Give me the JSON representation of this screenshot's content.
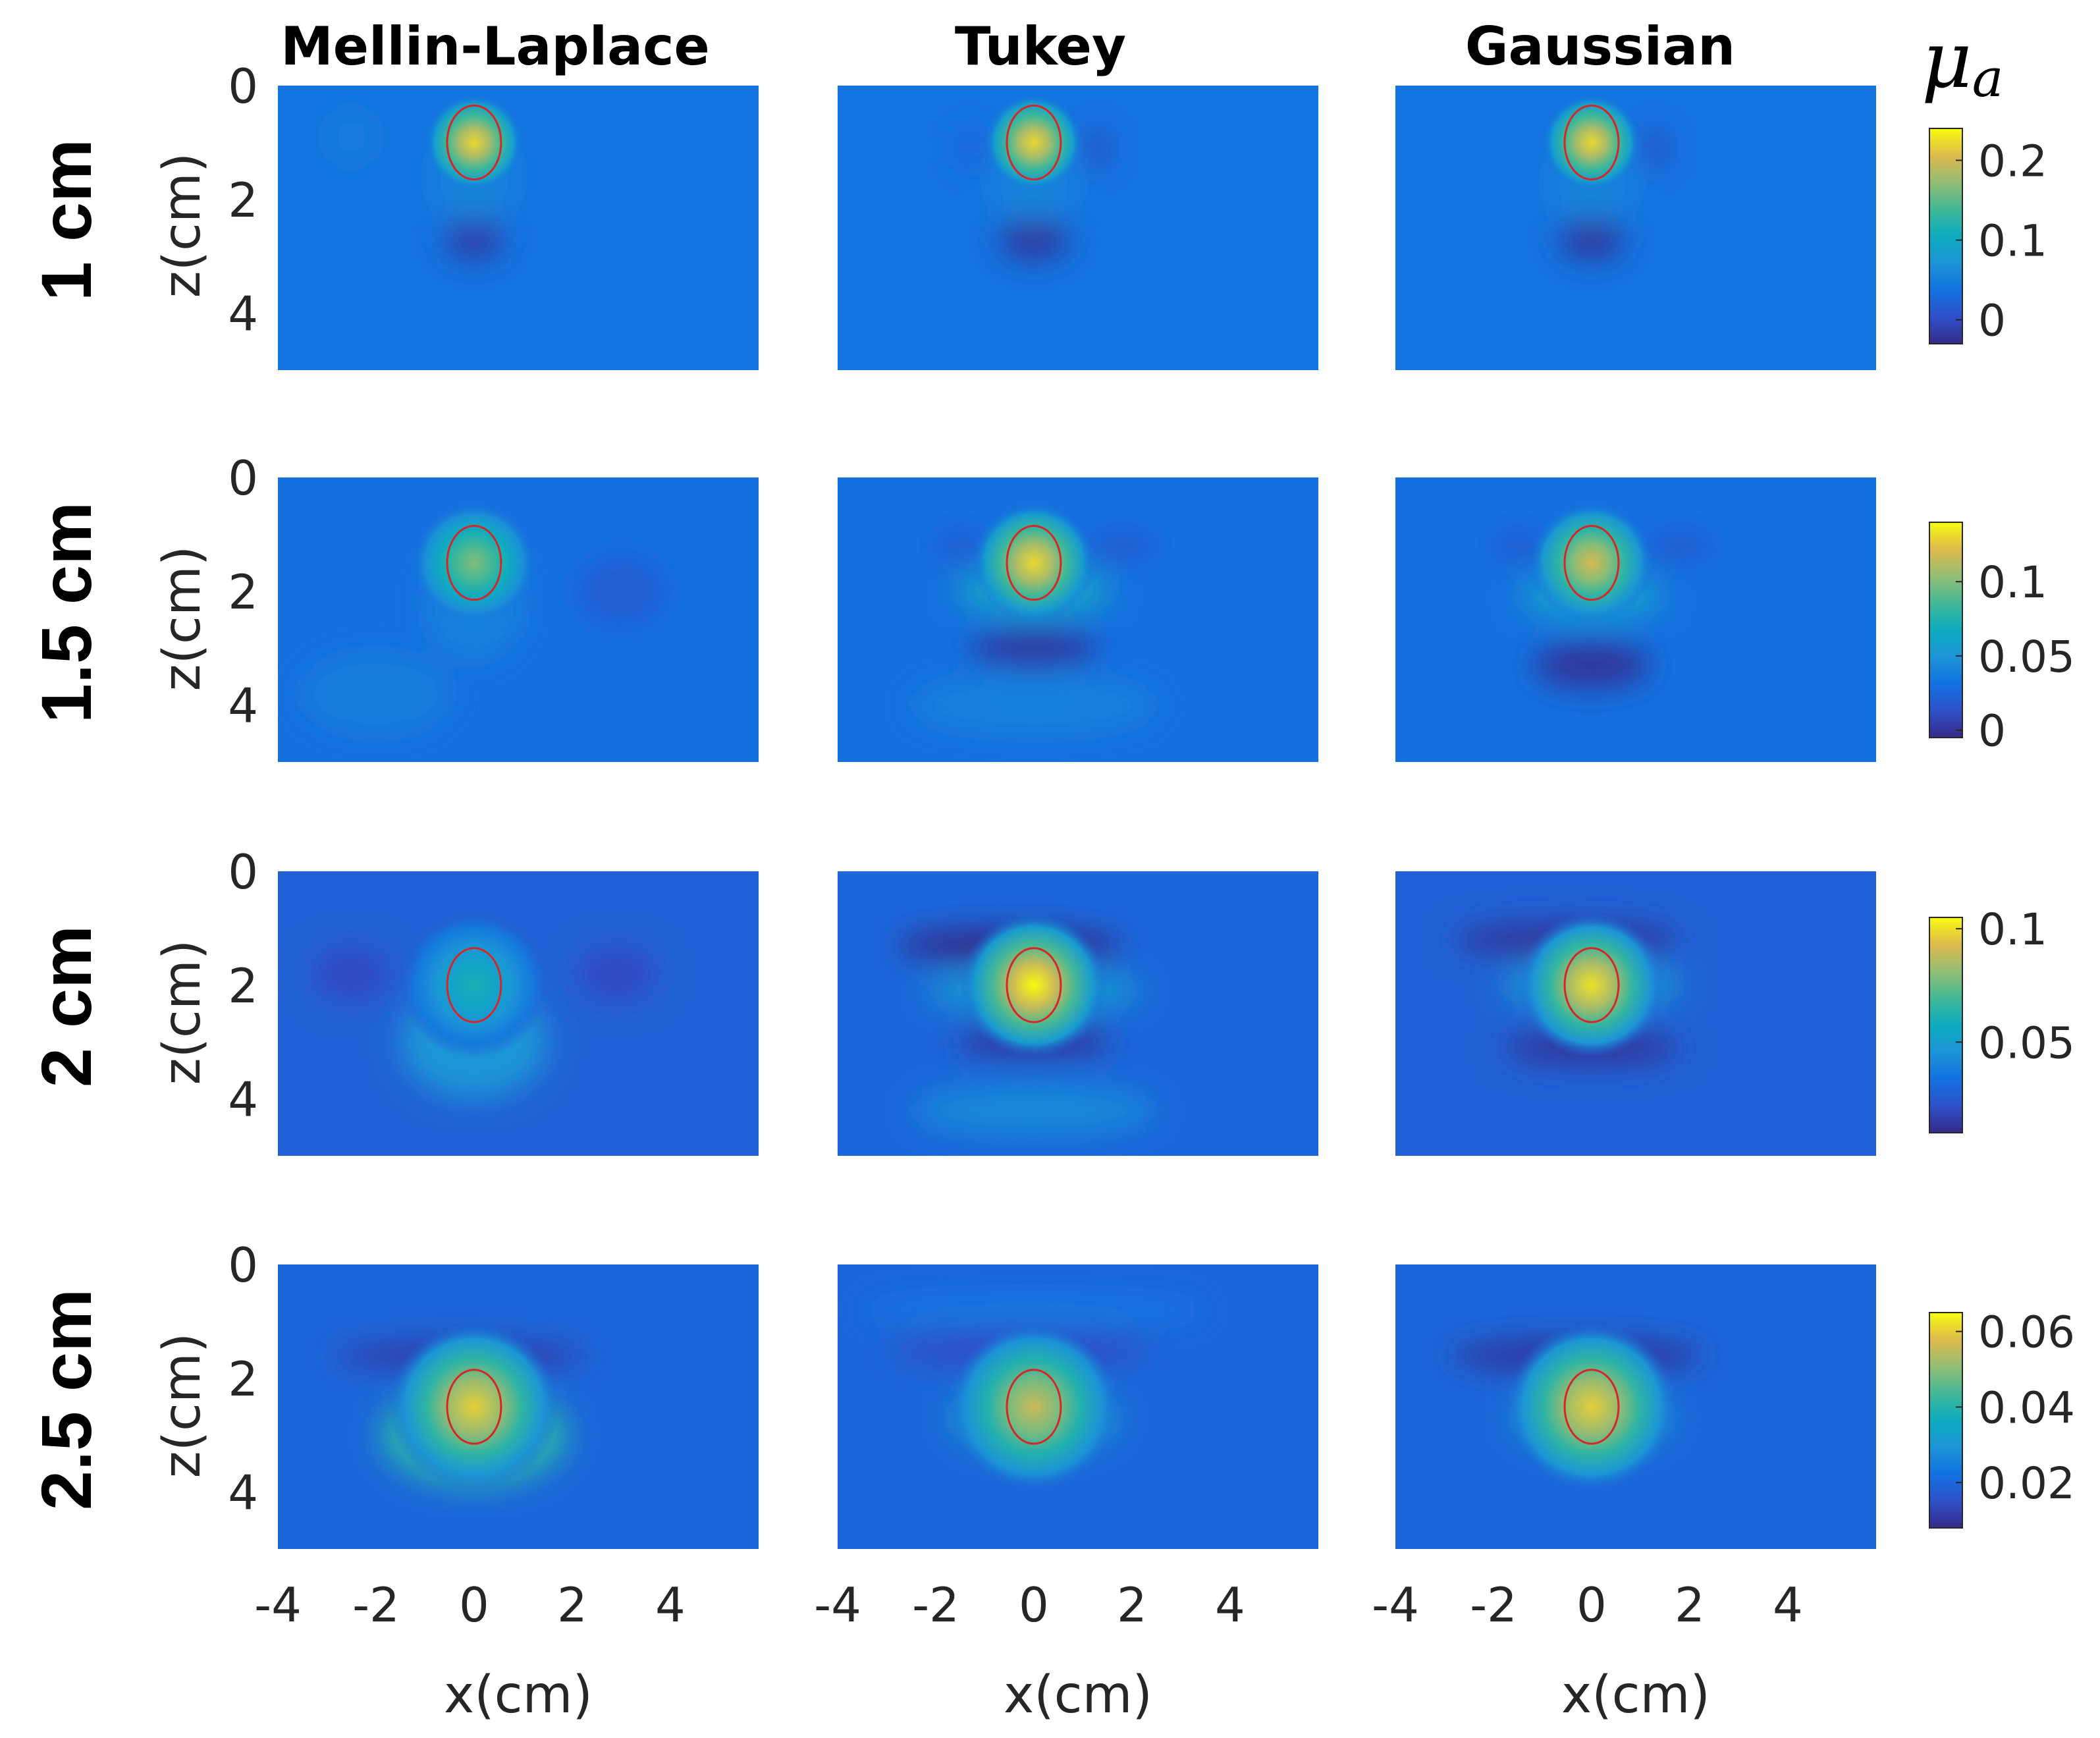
{
  "chart_data": {
    "type": "heatmap",
    "colormap": "parula",
    "columns": [
      "Mellin-Laplace",
      "Tukey",
      "Gaussian"
    ],
    "colorbar_label": {
      "symbol": "μ",
      "subscript": "a"
    },
    "xlabel": "x(cm)",
    "ylabel": "z(cm)",
    "x_ticks": [
      "-4",
      "-2",
      "0",
      "2",
      "4"
    ],
    "x_tick_values": [
      -4,
      -2,
      0,
      2,
      4
    ],
    "y_ticks": [
      "0",
      "2",
      "4"
    ],
    "y_tick_values": [
      0,
      2,
      4
    ],
    "xlim": [
      -4,
      5.8
    ],
    "ylim": [
      0,
      5
    ],
    "inclusion": {
      "x": 0,
      "radius_x": 0.55,
      "radius_z": 0.65,
      "outline_color": "#d62728"
    },
    "rows": [
      {
        "label": "1 cm",
        "depth": 1,
        "colorbar": {
          "min": -0.03,
          "max": 0.24,
          "ticks": [
            "0.2",
            "0.1",
            "0"
          ],
          "tick_values": [
            0.2,
            0.1,
            0
          ]
        },
        "panels": [
          {
            "method": "Mellin-Laplace",
            "background": 0.04,
            "peak": 0.22,
            "blobs": [
              {
                "x": 0,
                "z": 2.7,
                "sx": 0.6,
                "sz": 0.35,
                "v": -0.055
              },
              {
                "x": 0,
                "z": 1.6,
                "sx": 0.9,
                "sz": 0.8,
                "v": 0.015
              },
              {
                "x": -2.5,
                "z": 0.9,
                "sx": 0.5,
                "sz": 0.5,
                "v": 0.01
              }
            ]
          },
          {
            "method": "Tukey",
            "background": 0.04,
            "peak": 0.22,
            "blobs": [
              {
                "x": 0,
                "z": 2.7,
                "sx": 0.7,
                "sz": 0.35,
                "v": -0.06
              },
              {
                "x": 1.3,
                "z": 1.1,
                "sx": 0.25,
                "sz": 0.35,
                "v": -0.04
              },
              {
                "x": -1.3,
                "z": 1.1,
                "sx": 0.25,
                "sz": 0.35,
                "v": -0.02
              },
              {
                "x": 0,
                "z": 1.7,
                "sx": 0.9,
                "sz": 0.7,
                "v": 0.015
              }
            ]
          },
          {
            "method": "Gaussian",
            "background": 0.04,
            "peak": 0.22,
            "blobs": [
              {
                "x": 0,
                "z": 2.7,
                "sx": 0.65,
                "sz": 0.35,
                "v": -0.06
              },
              {
                "x": 1.3,
                "z": 1.1,
                "sx": 0.25,
                "sz": 0.35,
                "v": -0.04
              },
              {
                "x": 0,
                "z": 1.7,
                "sx": 0.9,
                "sz": 0.7,
                "v": 0.015
              }
            ]
          }
        ]
      },
      {
        "label": "1.5 cm",
        "depth": 1.5,
        "colorbar": {
          "min": -0.005,
          "max": 0.14,
          "ticks": [
            "0.1",
            "0.05",
            "0"
          ],
          "tick_values": [
            0.1,
            0.05,
            0
          ]
        },
        "panels": [
          {
            "method": "Mellin-Laplace",
            "background": 0.03,
            "peak": 0.1,
            "blobs": [
              {
                "x": 3,
                "z": 2.0,
                "sx": 0.9,
                "sz": 0.6,
                "v": -0.01
              },
              {
                "x": 0,
                "z": 2.2,
                "sx": 1.0,
                "sz": 1.0,
                "v": 0.01
              },
              {
                "x": -2,
                "z": 3.8,
                "sx": 1.5,
                "sz": 0.7,
                "v": 0.008
              }
            ]
          },
          {
            "method": "Tukey",
            "background": 0.03,
            "peak": 0.13,
            "blobs": [
              {
                "x": 0,
                "z": 3.0,
                "sx": 1.3,
                "sz": 0.3,
                "v": -0.03
              },
              {
                "x": -1.5,
                "z": 1.2,
                "sx": 0.5,
                "sz": 0.2,
                "v": -0.015
              },
              {
                "x": 1.8,
                "z": 1.2,
                "sx": 0.7,
                "sz": 0.2,
                "v": -0.015
              },
              {
                "x": 0,
                "z": 2.0,
                "sx": 1.6,
                "sz": 0.45,
                "v": 0.03
              },
              {
                "x": 0,
                "z": 4.0,
                "sx": 2.5,
                "sz": 0.5,
                "v": 0.01
              }
            ]
          },
          {
            "method": "Gaussian",
            "background": 0.03,
            "peak": 0.12,
            "blobs": [
              {
                "x": 0,
                "z": 3.3,
                "sx": 1.2,
                "sz": 0.4,
                "v": -0.03
              },
              {
                "x": -1.5,
                "z": 1.2,
                "sx": 0.5,
                "sz": 0.2,
                "v": -0.015
              },
              {
                "x": 1.8,
                "z": 1.2,
                "sx": 0.7,
                "sz": 0.2,
                "v": -0.015
              },
              {
                "x": 0,
                "z": 2.1,
                "sx": 1.5,
                "sz": 0.45,
                "v": 0.025
              }
            ]
          }
        ]
      },
      {
        "label": "2 cm",
        "depth": 2,
        "colorbar": {
          "min": 0.01,
          "max": 0.105,
          "ticks": [
            "0.1",
            "0.05"
          ],
          "tick_values": [
            0.1,
            0.05
          ]
        },
        "panels": [
          {
            "method": "Mellin-Laplace",
            "background": 0.028,
            "peak": 0.06,
            "blobs": [
              {
                "x": -2.5,
                "z": 1.8,
                "sx": 0.8,
                "sz": 0.5,
                "v": -0.008
              },
              {
                "x": 2.9,
                "z": 1.8,
                "sx": 0.8,
                "sz": 0.5,
                "v": -0.008
              },
              {
                "x": 0,
                "z": 3.0,
                "sx": 1.5,
                "sz": 1.0,
                "v": 0.018
              }
            ]
          },
          {
            "method": "Tukey",
            "background": 0.03,
            "peak": 0.105,
            "blobs": [
              {
                "x": -0.5,
                "z": 1.3,
                "sx": 2.3,
                "sz": 0.3,
                "v": -0.02
              },
              {
                "x": 0,
                "z": 3.0,
                "sx": 1.6,
                "sz": 0.25,
                "v": -0.018
              },
              {
                "x": 0,
                "z": 2.1,
                "sx": 2.2,
                "sz": 0.35,
                "v": 0.02
              },
              {
                "x": 0,
                "z": 4.2,
                "sx": 2.5,
                "sz": 0.45,
                "v": 0.012
              }
            ]
          },
          {
            "method": "Gaussian",
            "background": 0.028,
            "peak": 0.1,
            "blobs": [
              {
                "x": -0.5,
                "z": 1.2,
                "sx": 2.3,
                "sz": 0.3,
                "v": -0.015
              },
              {
                "x": 0,
                "z": 3.1,
                "sx": 1.8,
                "sz": 0.3,
                "v": -0.015
              },
              {
                "x": 0,
                "z": 2.0,
                "sx": 1.8,
                "sz": 0.45,
                "v": 0.02
              }
            ]
          }
        ]
      },
      {
        "label": "2.5 cm",
        "depth": 2.5,
        "colorbar": {
          "min": 0.008,
          "max": 0.065,
          "ticks": [
            "0.06",
            "0.04",
            "0.02"
          ],
          "tick_values": [
            0.06,
            0.04,
            0.02
          ]
        },
        "panels": [
          {
            "method": "Mellin-Laplace",
            "background": 0.02,
            "peak": 0.06,
            "blobs": [
              {
                "x": -0.3,
                "z": 1.6,
                "sx": 2.6,
                "sz": 0.3,
                "v": -0.008
              },
              {
                "x": 0,
                "z": 3.0,
                "sx": 1.9,
                "sz": 0.9,
                "v": 0.02
              }
            ]
          },
          {
            "method": "Tukey",
            "background": 0.02,
            "peak": 0.056,
            "blobs": [
              {
                "x": -0.3,
                "z": 1.5,
                "sx": 2.6,
                "sz": 0.3,
                "v": -0.006
              },
              {
                "x": 0,
                "z": 2.7,
                "sx": 1.7,
                "sz": 0.6,
                "v": 0.012
              },
              {
                "x": 0,
                "z": 0.8,
                "sx": 3.5,
                "sz": 0.3,
                "v": 0.003
              }
            ]
          },
          {
            "method": "Gaussian",
            "background": 0.02,
            "peak": 0.06,
            "blobs": [
              {
                "x": -0.3,
                "z": 1.6,
                "sx": 2.6,
                "sz": 0.3,
                "v": -0.01
              },
              {
                "x": 0,
                "z": 2.7,
                "sx": 1.6,
                "sz": 0.55,
                "v": 0.012
              }
            ]
          }
        ]
      }
    ]
  }
}
